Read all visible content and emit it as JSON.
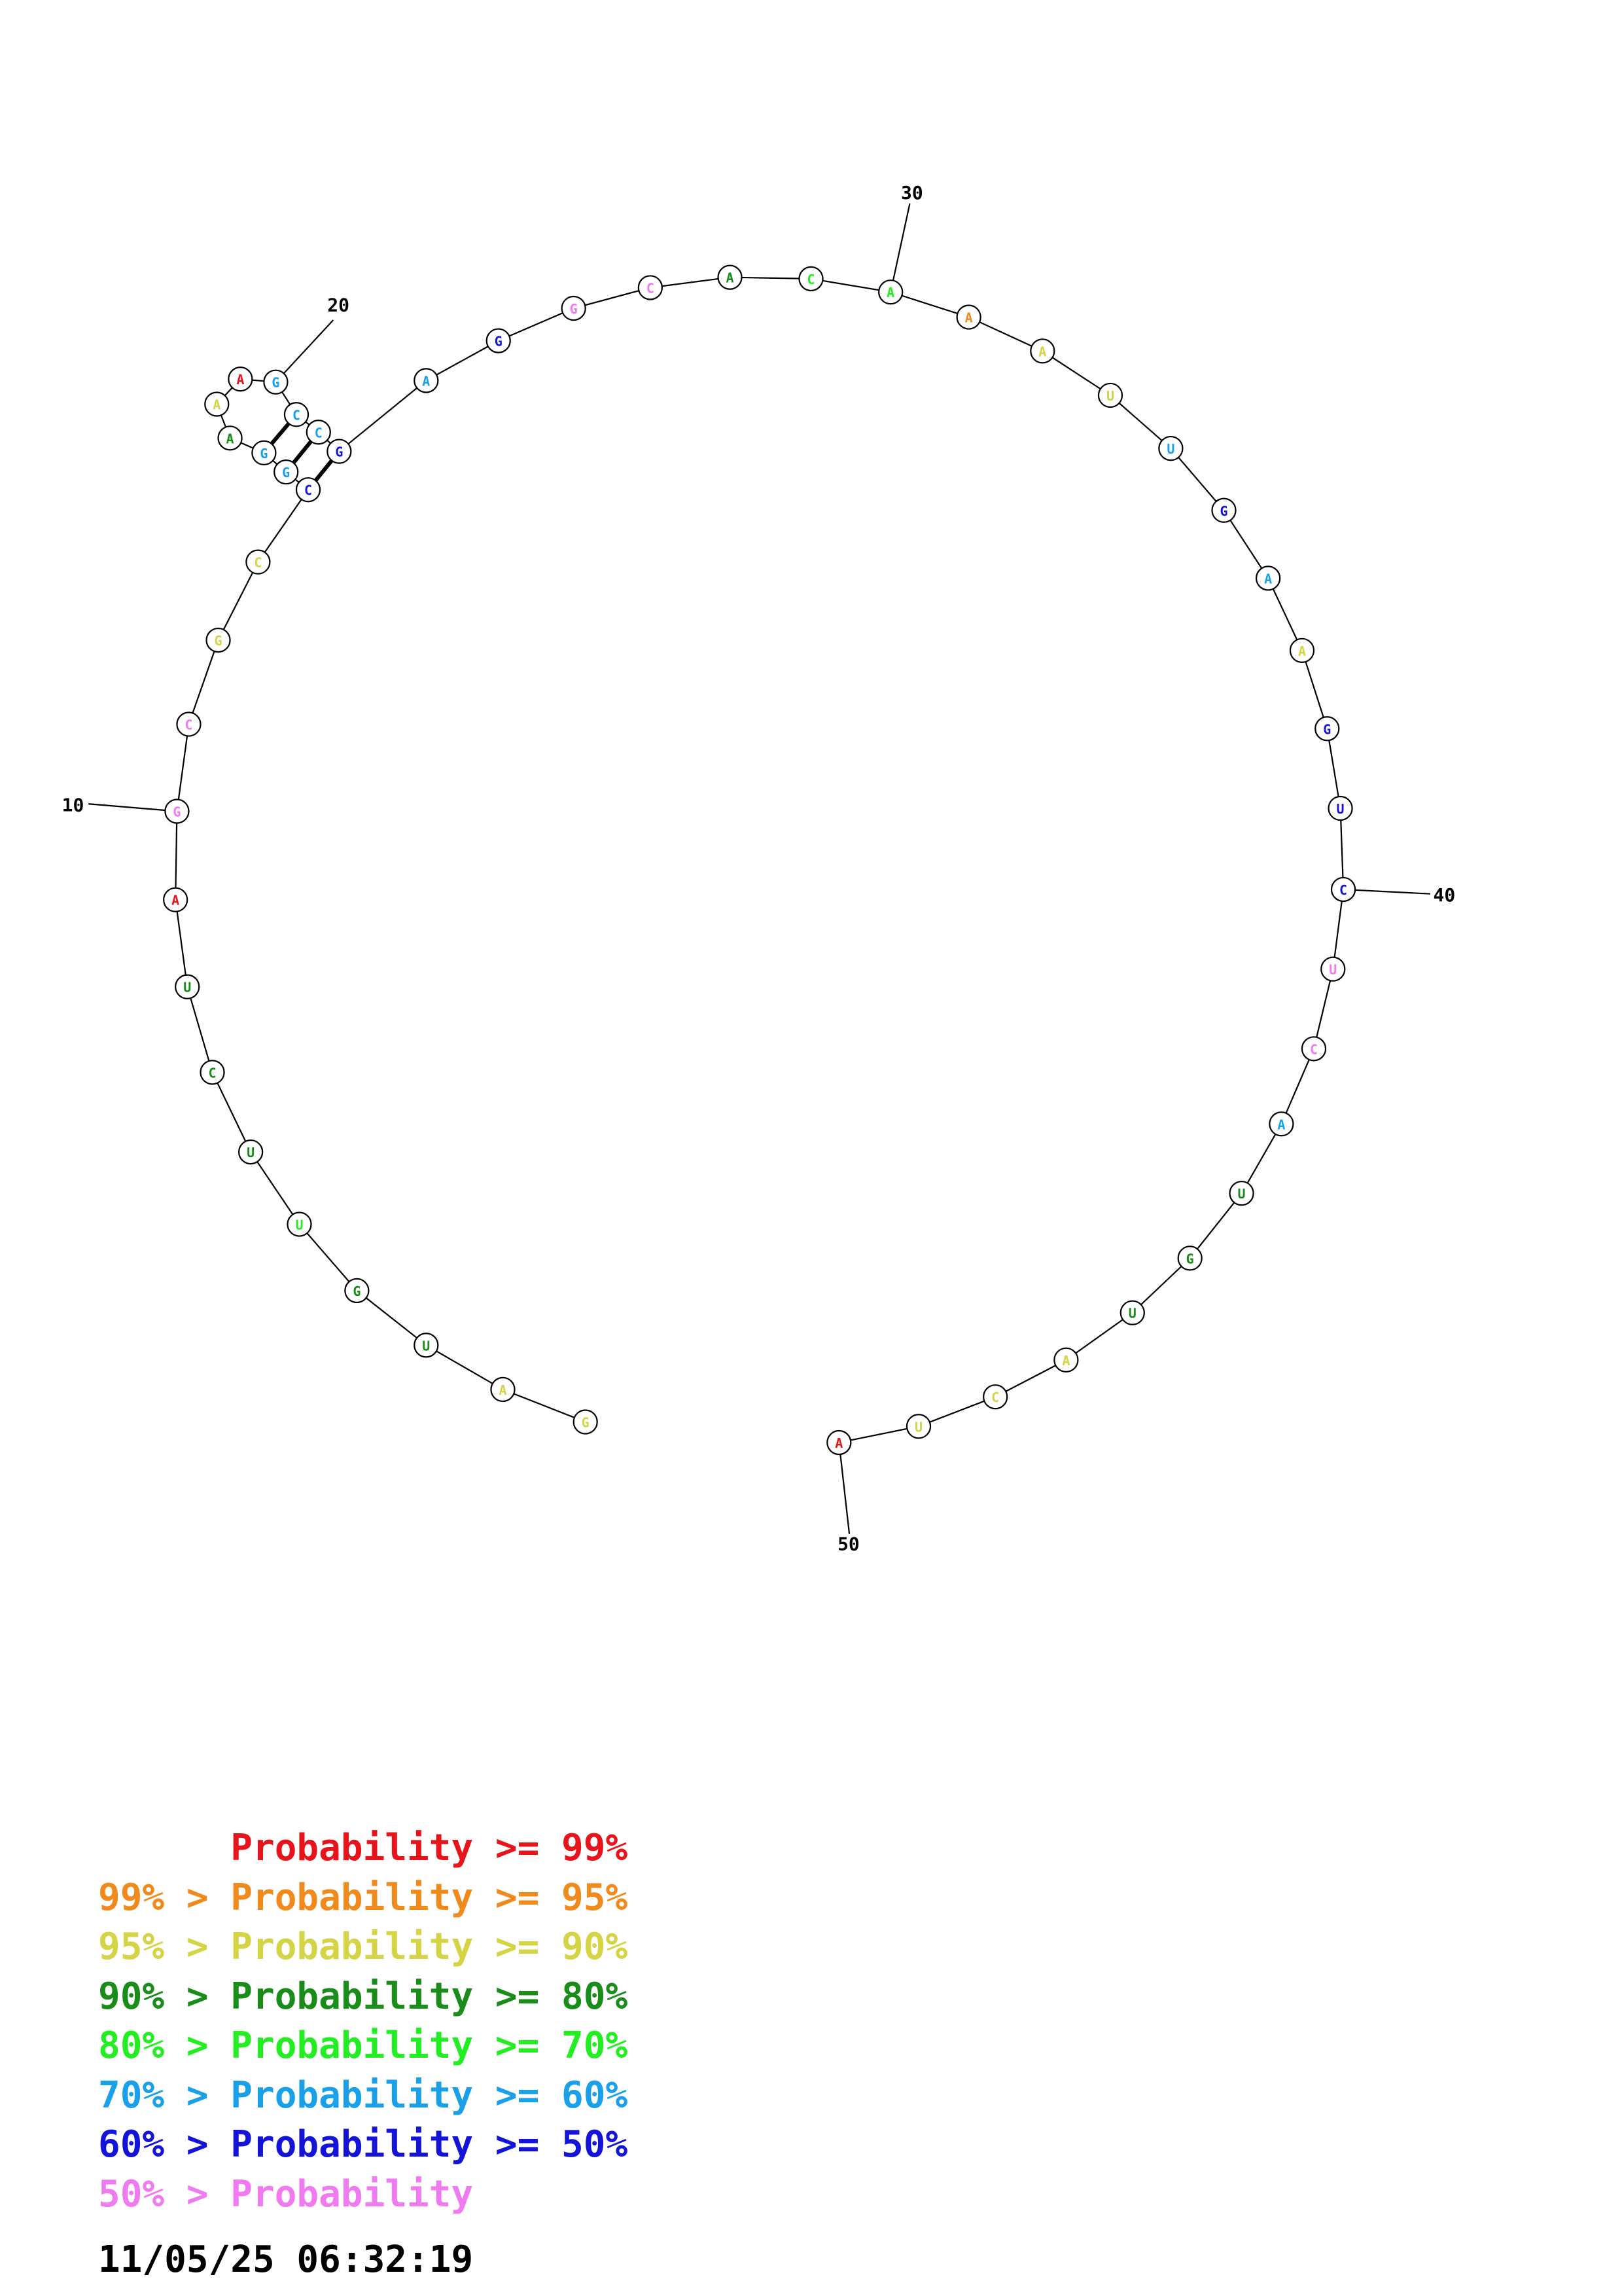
{
  "colors": {
    "p99": "#e8141c",
    "p95": "#f08a1c",
    "p90": "#d4d444",
    "p80": "#1a8c1a",
    "p70": "#22ee22",
    "p60": "#1aa0e8",
    "p50": "#1414d8",
    "plow": "#f07af0"
  },
  "sequence": [
    {
      "n": 1,
      "base": "G",
      "prob": "p90"
    },
    {
      "n": 2,
      "base": "A",
      "prob": "p90"
    },
    {
      "n": 3,
      "base": "U",
      "prob": "p80"
    },
    {
      "n": 4,
      "base": "G",
      "prob": "p80"
    },
    {
      "n": 5,
      "base": "U",
      "prob": "p70"
    },
    {
      "n": 6,
      "base": "U",
      "prob": "p80"
    },
    {
      "n": 7,
      "base": "C",
      "prob": "p80"
    },
    {
      "n": 8,
      "base": "U",
      "prob": "p80"
    },
    {
      "n": 9,
      "base": "A",
      "prob": "p99"
    },
    {
      "n": 10,
      "base": "G",
      "prob": "plow"
    },
    {
      "n": 11,
      "base": "C",
      "prob": "plow"
    },
    {
      "n": 12,
      "base": "G",
      "prob": "p90"
    },
    {
      "n": 13,
      "base": "C",
      "prob": "p90"
    },
    {
      "n": 14,
      "base": "C",
      "prob": "p50"
    },
    {
      "n": 15,
      "base": "G",
      "prob": "p60"
    },
    {
      "n": 16,
      "base": "G",
      "prob": "p60"
    },
    {
      "n": 17,
      "base": "A",
      "prob": "p80"
    },
    {
      "n": 18,
      "base": "A",
      "prob": "p90"
    },
    {
      "n": 19,
      "base": "A",
      "prob": "p99"
    },
    {
      "n": 20,
      "base": "G",
      "prob": "p60"
    },
    {
      "n": 21,
      "base": "C",
      "prob": "p60"
    },
    {
      "n": 22,
      "base": "C",
      "prob": "p60"
    },
    {
      "n": 23,
      "base": "G",
      "prob": "p50"
    },
    {
      "n": 24,
      "base": "A",
      "prob": "p60"
    },
    {
      "n": 25,
      "base": "G",
      "prob": "p50"
    },
    {
      "n": 26,
      "base": "G",
      "prob": "plow"
    },
    {
      "n": 27,
      "base": "C",
      "prob": "plow"
    },
    {
      "n": 28,
      "base": "A",
      "prob": "p80"
    },
    {
      "n": 29,
      "base": "C",
      "prob": "p70"
    },
    {
      "n": 30,
      "base": "A",
      "prob": "p70"
    },
    {
      "n": 31,
      "base": "A",
      "prob": "p95"
    },
    {
      "n": 32,
      "base": "A",
      "prob": "p90"
    },
    {
      "n": 33,
      "base": "U",
      "prob": "p90"
    },
    {
      "n": 34,
      "base": "U",
      "prob": "p60"
    },
    {
      "n": 35,
      "base": "G",
      "prob": "p50"
    },
    {
      "n": 36,
      "base": "A",
      "prob": "p60"
    },
    {
      "n": 37,
      "base": "A",
      "prob": "p90"
    },
    {
      "n": 38,
      "base": "G",
      "prob": "p50"
    },
    {
      "n": 39,
      "base": "U",
      "prob": "p50"
    },
    {
      "n": 40,
      "base": "C",
      "prob": "p50"
    },
    {
      "n": 41,
      "base": "U",
      "prob": "plow"
    },
    {
      "n": 42,
      "base": "C",
      "prob": "plow"
    },
    {
      "n": 43,
      "base": "A",
      "prob": "p60"
    },
    {
      "n": 44,
      "base": "U",
      "prob": "p80"
    },
    {
      "n": 45,
      "base": "G",
      "prob": "p80"
    },
    {
      "n": 46,
      "base": "U",
      "prob": "p80"
    },
    {
      "n": 47,
      "base": "A",
      "prob": "p90"
    },
    {
      "n": 48,
      "base": "C",
      "prob": "p90"
    },
    {
      "n": 49,
      "base": "U",
      "prob": "p90"
    },
    {
      "n": 50,
      "base": "A",
      "prob": "p99"
    }
  ],
  "base_pairs": [
    [
      14,
      23
    ],
    [
      15,
      22
    ],
    [
      16,
      21
    ]
  ],
  "position_labels": [
    "10",
    "20",
    "30",
    "40",
    "50"
  ],
  "legend": [
    {
      "text": "      Probability >= 99%",
      "prob": "p99"
    },
    {
      "text": "99% > Probability >= 95%",
      "prob": "p95"
    },
    {
      "text": "95% > Probability >= 90%",
      "prob": "p90"
    },
    {
      "text": "90% > Probability >= 80%",
      "prob": "p80"
    },
    {
      "text": "80% > Probability >= 70%",
      "prob": "p70"
    },
    {
      "text": "70% > Probability >= 60%",
      "prob": "p60"
    },
    {
      "text": "60% > Probability >= 50%",
      "prob": "p50"
    },
    {
      "text": "50% > Probability",
      "prob": "plow"
    }
  ],
  "timestamp": "11/05/25 06:32:19"
}
